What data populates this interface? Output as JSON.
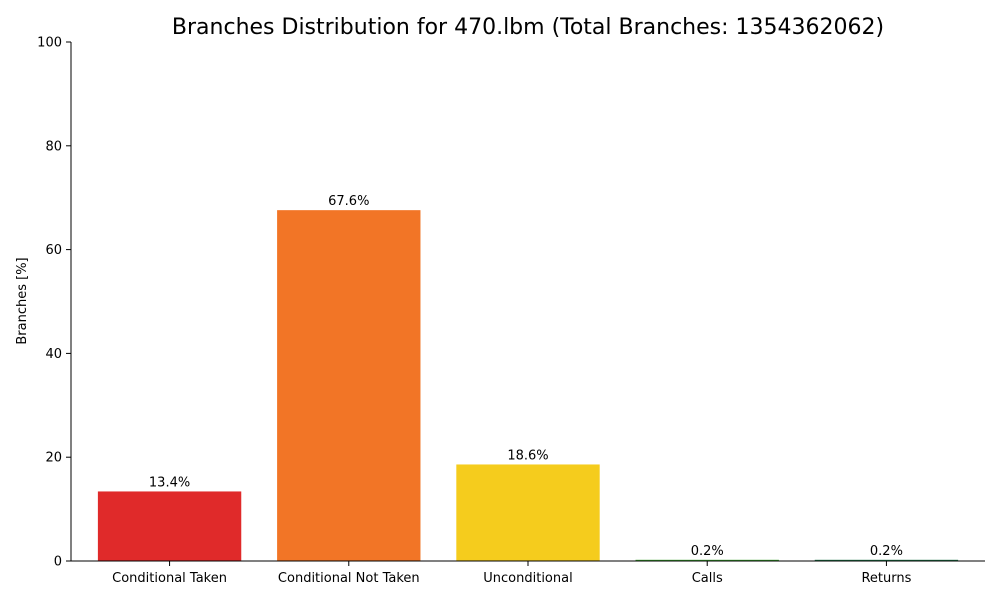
{
  "chart_data": {
    "type": "bar",
    "title": "Branches Distribution for 470.lbm (Total Branches: 1354362062)",
    "xlabel": "",
    "ylabel": "Branches [%]",
    "ylim": [
      0,
      100
    ],
    "yticks": [
      0,
      20,
      40,
      60,
      80,
      100
    ],
    "grid": false,
    "categories": [
      "Conditional Taken",
      "Conditional Not Taken",
      "Unconditional",
      "Calls",
      "Returns"
    ],
    "values": [
      13.4,
      67.6,
      18.6,
      0.2,
      0.2
    ],
    "value_labels": [
      "13.4%",
      "67.6%",
      "18.6%",
      "0.2%",
      "0.2%"
    ],
    "colors": [
      "#e02a2a",
      "#f27526",
      "#f5cc1d",
      "#3aa62e",
      "#1f7a4d"
    ]
  }
}
